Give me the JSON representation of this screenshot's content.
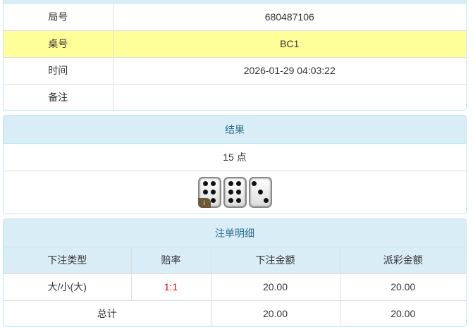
{
  "info": {
    "rows": [
      {
        "label": "局号",
        "value": "680487106"
      },
      {
        "label": "桌号",
        "value": "BC1"
      },
      {
        "label": "时间",
        "value": "2026-01-29 04:03:22"
      },
      {
        "label": "备注",
        "value": ""
      }
    ]
  },
  "result": {
    "title": "结果",
    "points": "15 点",
    "dice": [
      6,
      6,
      3
    ],
    "badge": "i"
  },
  "bets": {
    "title": "注单明细",
    "headers": [
      "下注类型",
      "赔率",
      "下注金额",
      "派彩金额"
    ],
    "rows": [
      {
        "type": "大/小(大)",
        "odds": "1:1",
        "amount": "20.00",
        "payout": "20.00"
      }
    ],
    "total": {
      "label": "总计",
      "amount": "20.00",
      "payout": "20.00"
    }
  },
  "colors": {
    "header_bg": "#d9edf7",
    "highlight": "#ffff99",
    "odds": "#e00000"
  }
}
